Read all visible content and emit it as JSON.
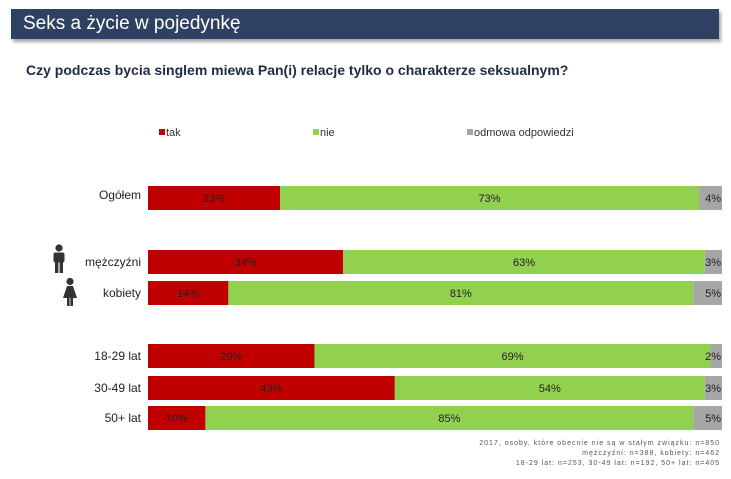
{
  "header": {
    "title": "Seks a życie w pojedynkę"
  },
  "question": "Czy podczas bycia singlem miewa Pan(i) relacje tylko o charakterze seksualnym?",
  "colors": {
    "tak": "#c00000",
    "nie": "#92d050",
    "odmowa": "#a6a6a6",
    "header_bg": "#2e4163"
  },
  "chart_data": {
    "type": "bar",
    "orientation": "horizontal",
    "stacked": true,
    "legend": {
      "placement": "top",
      "entries": [
        "tak",
        "nie",
        "odmowa odpowiedzi"
      ]
    },
    "categories": [
      "Ogółem",
      "mężczyźni",
      "kobiety",
      "18-29 lat",
      "30-49 lat",
      "50+ lat"
    ],
    "series": [
      {
        "name": "tak",
        "values": [
          23,
          34,
          14,
          29,
          43,
          10
        ]
      },
      {
        "name": "nie",
        "values": [
          73,
          63,
          81,
          69,
          54,
          85
        ]
      },
      {
        "name": "odmowa odpowiedzi",
        "values": [
          4,
          3,
          5,
          2,
          3,
          5
        ]
      }
    ],
    "value_suffix": "%",
    "xlim": [
      0,
      100
    ]
  },
  "icons": {
    "male": "man-icon",
    "female": "woman-icon"
  },
  "footnote": [
    "2017, osoby, które obecnie nie są w stałym związku: n=850",
    "mężczyźni: n=388, kobiety: n=462",
    "18-29 lat: n=253, 30-49 lat: n=192, 50+ lat: n=405"
  ]
}
